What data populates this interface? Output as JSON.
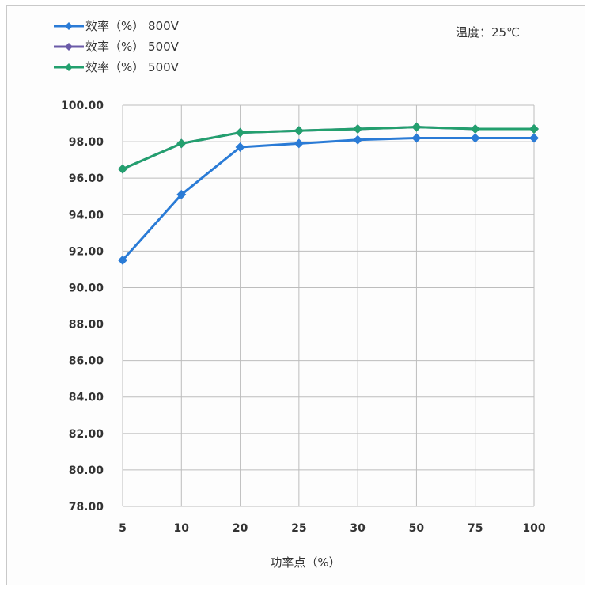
{
  "chart_data": {
    "type": "line",
    "title": "",
    "annotation": "温度：25℃",
    "xlabel": "功率点（%）",
    "ylabel": "",
    "categories": [
      "5",
      "10",
      "20",
      "25",
      "30",
      "50",
      "75",
      "100"
    ],
    "ylim": [
      78,
      100
    ],
    "yticks": [
      "78.00",
      "80.00",
      "82.00",
      "84.00",
      "86.00",
      "88.00",
      "90.00",
      "92.00",
      "94.00",
      "96.00",
      "98.00",
      "100.00"
    ],
    "grid": true,
    "legend_position": "top-left",
    "series": [
      {
        "name": "效率（%） 800V",
        "color": "#2a7bd6",
        "values": [
          91.5,
          95.1,
          97.7,
          97.9,
          98.1,
          98.2,
          98.2,
          98.2
        ]
      },
      {
        "name": "效率（%） 500V",
        "color": "#6a5aa8",
        "values": [
          96.5,
          97.9,
          98.5,
          98.6,
          98.7,
          98.8,
          98.7,
          98.7
        ]
      },
      {
        "name": "效率（%） 500V",
        "color": "#23a06e",
        "values": [
          96.5,
          97.9,
          98.5,
          98.6,
          98.7,
          98.8,
          98.7,
          98.7
        ]
      }
    ]
  }
}
